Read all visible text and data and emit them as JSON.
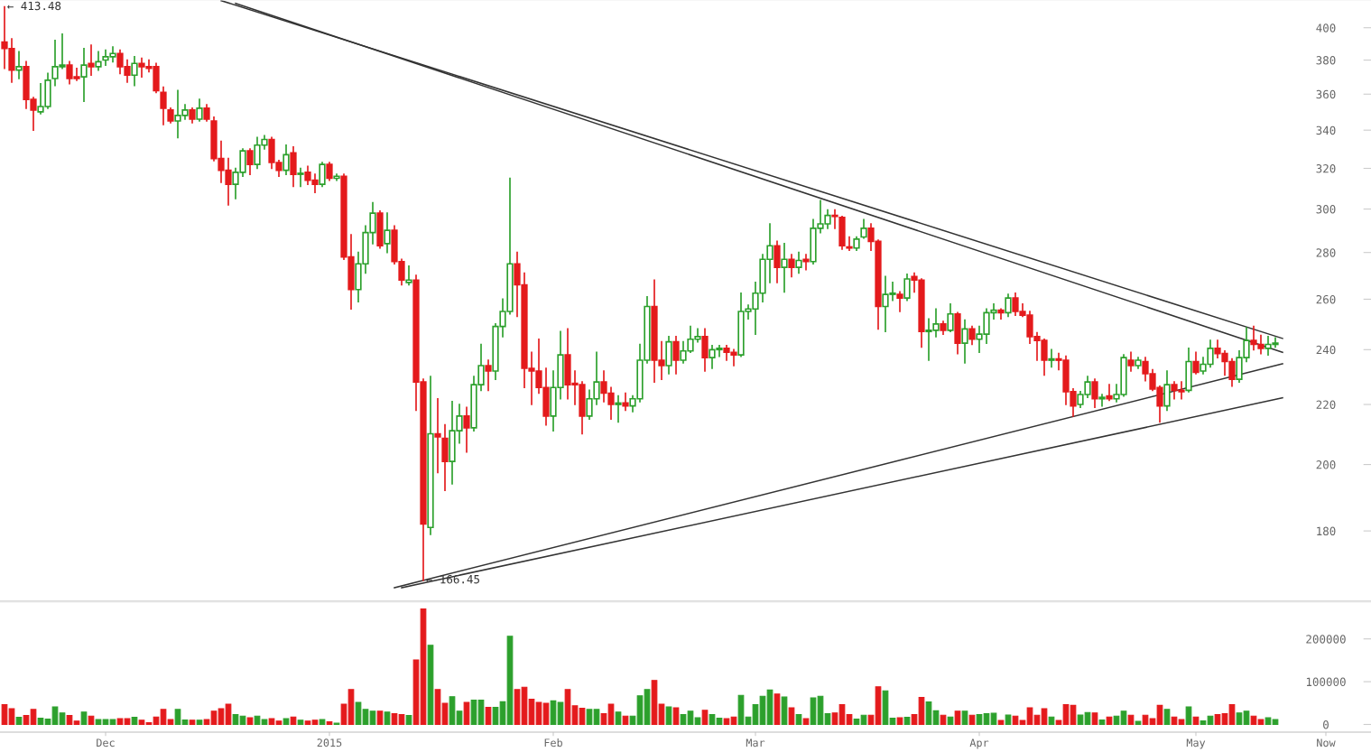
{
  "chart_data": [
    {
      "type": "candlestick",
      "log": true,
      "tick_labels": "y",
      "xlim": [
        "2014-11-16T09:00",
        "2015-05-25T06:00"
      ],
      "ylim": [
        161,
        418
      ],
      "yticks": [
        180,
        200,
        220,
        240,
        260,
        280,
        300,
        320,
        340,
        360,
        380,
        400
      ],
      "annotations": [
        {
          "text": "← 413.48",
          "x": "2014-11-17",
          "y": 413.48
        },
        {
          "text": "← 166.45",
          "x": "2015-01-14",
          "y": 166.45
        }
      ],
      "series": [
        {
          "type": "line",
          "color": "#333333",
          "x": [
            "2014-12-17",
            "2015-05-13"
          ],
          "values": [
            417.6,
            244.3
          ]
        },
        {
          "type": "line",
          "color": "#333333",
          "x": [
            "2014-12-19",
            "2015-05-13"
          ],
          "values": [
            415.8,
            239
          ]
        },
        {
          "type": "line",
          "color": "#333333",
          "x": [
            "2015-01-10",
            "2015-05-13"
          ],
          "values": [
            164.5,
            234.7
          ]
        },
        {
          "type": "line",
          "color": "#333333",
          "x": [
            "2015-01-11",
            "2015-05-13"
          ],
          "values": [
            164.5,
            222.3
          ]
        }
      ],
      "x": [
        "2014-11-17",
        "2014-11-18",
        "2014-11-19",
        "2014-11-20",
        "2014-11-21",
        "2014-11-22",
        "2014-11-23",
        "2014-11-24",
        "2014-11-25",
        "2014-11-26",
        "2014-11-27",
        "2014-11-28",
        "2014-11-29",
        "2014-11-30",
        "2014-12-01",
        "2014-12-02",
        "2014-12-03",
        "2014-12-04",
        "2014-12-05",
        "2014-12-06",
        "2014-12-07",
        "2014-12-08",
        "2014-12-09",
        "2014-12-10",
        "2014-12-11",
        "2014-12-12",
        "2014-12-13",
        "2014-12-14",
        "2014-12-15",
        "2014-12-16",
        "2014-12-17",
        "2014-12-18",
        "2014-12-19",
        "2014-12-20",
        "2014-12-21",
        "2014-12-22",
        "2014-12-23",
        "2014-12-24",
        "2014-12-25",
        "2014-12-26",
        "2014-12-27",
        "2014-12-28",
        "2014-12-29",
        "2014-12-30",
        "2014-12-31",
        "2015-01-01",
        "2015-01-02",
        "2015-01-03",
        "2015-01-04",
        "2015-01-05",
        "2015-01-06",
        "2015-01-07",
        "2015-01-08",
        "2015-01-09",
        "2015-01-10",
        "2015-01-11",
        "2015-01-12",
        "2015-01-13",
        "2015-01-14",
        "2015-01-15",
        "2015-01-16",
        "2015-01-17",
        "2015-01-18",
        "2015-01-19",
        "2015-01-20",
        "2015-01-21",
        "2015-01-22",
        "2015-01-23",
        "2015-01-24",
        "2015-01-25",
        "2015-01-26",
        "2015-01-27",
        "2015-01-28",
        "2015-01-29",
        "2015-01-30",
        "2015-01-31",
        "2015-02-01",
        "2015-02-02",
        "2015-02-03",
        "2015-02-04",
        "2015-02-05",
        "2015-02-06",
        "2015-02-07",
        "2015-02-08",
        "2015-02-09",
        "2015-02-10",
        "2015-02-11",
        "2015-02-12",
        "2015-02-13",
        "2015-02-14",
        "2015-02-15",
        "2015-02-16",
        "2015-02-17",
        "2015-02-18",
        "2015-02-19",
        "2015-02-20",
        "2015-02-21",
        "2015-02-22",
        "2015-02-23",
        "2015-02-24",
        "2015-02-25",
        "2015-02-26",
        "2015-02-27",
        "2015-02-28",
        "2015-03-01",
        "2015-03-02",
        "2015-03-03",
        "2015-03-04",
        "2015-03-05",
        "2015-03-06",
        "2015-03-07",
        "2015-03-08",
        "2015-03-09",
        "2015-03-10",
        "2015-03-11",
        "2015-03-12",
        "2015-03-13",
        "2015-03-14",
        "2015-03-15",
        "2015-03-16",
        "2015-03-17",
        "2015-03-18",
        "2015-03-19",
        "2015-03-20",
        "2015-03-21",
        "2015-03-22",
        "2015-03-23",
        "2015-03-24",
        "2015-03-25",
        "2015-03-26",
        "2015-03-27",
        "2015-03-28",
        "2015-03-29",
        "2015-03-30",
        "2015-03-31",
        "2015-04-01",
        "2015-04-02",
        "2015-04-03",
        "2015-04-04",
        "2015-04-05",
        "2015-04-06",
        "2015-04-07",
        "2015-04-08",
        "2015-04-09",
        "2015-04-10",
        "2015-04-11",
        "2015-04-12",
        "2015-04-13",
        "2015-04-14",
        "2015-04-15",
        "2015-04-16",
        "2015-04-17",
        "2015-04-18",
        "2015-04-19",
        "2015-04-20",
        "2015-04-21",
        "2015-04-22",
        "2015-04-23",
        "2015-04-24",
        "2015-04-25",
        "2015-04-26",
        "2015-04-27",
        "2015-04-28",
        "2015-04-29",
        "2015-04-30",
        "2015-05-01",
        "2015-05-02",
        "2015-05-03",
        "2015-05-04",
        "2015-05-05",
        "2015-05-06",
        "2015-05-07",
        "2015-05-08",
        "2015-05-09",
        "2015-05-10",
        "2015-05-11",
        "2015-05-12"
      ],
      "ohlc": [
        [
          391,
          413.48,
          375,
          387
        ],
        [
          387,
          393,
          367,
          374
        ],
        [
          374,
          385,
          369,
          376
        ],
        [
          376,
          379,
          352,
          357
        ],
        [
          357,
          358,
          340,
          351
        ],
        [
          350,
          366,
          349,
          353
        ],
        [
          353,
          372,
          352,
          368
        ],
        [
          369,
          392,
          365,
          376
        ],
        [
          376,
          396,
          375,
          377
        ],
        [
          377,
          379,
          366,
          369
        ],
        [
          370,
          375,
          368,
          369
        ],
        [
          370,
          387,
          356,
          377
        ],
        [
          378,
          389,
          371,
          376
        ],
        [
          376,
          385,
          374,
          379
        ],
        [
          380,
          386,
          377,
          382
        ],
        [
          382,
          388,
          379,
          384
        ],
        [
          384,
          386,
          372,
          376
        ],
        [
          376,
          380,
          367,
          371
        ],
        [
          371,
          382,
          365,
          378
        ],
        [
          378,
          381,
          370,
          376
        ],
        [
          376,
          380,
          373,
          375
        ],
        [
          376,
          378,
          361,
          362
        ],
        [
          361,
          364,
          343,
          352
        ],
        [
          351,
          352,
          344,
          345
        ],
        [
          345,
          362,
          336,
          348
        ],
        [
          348,
          354,
          346,
          351
        ],
        [
          351,
          352,
          344,
          346
        ],
        [
          346,
          357,
          345,
          352
        ],
        [
          352,
          354,
          345,
          346
        ],
        [
          345,
          347,
          324,
          325
        ],
        [
          325,
          334,
          313,
          319
        ],
        [
          319,
          325,
          302,
          312
        ],
        [
          312,
          320,
          305,
          318
        ],
        [
          318,
          330,
          316,
          329
        ],
        [
          329,
          330,
          317,
          322
        ],
        [
          322,
          336,
          320,
          332
        ],
        [
          332,
          337,
          330,
          335
        ],
        [
          335,
          336,
          320,
          323
        ],
        [
          323,
          324,
          316,
          319
        ],
        [
          319,
          332,
          317,
          327
        ],
        [
          328,
          331,
          311,
          317
        ],
        [
          317,
          320,
          311,
          317.5
        ],
        [
          318,
          321,
          312,
          314
        ],
        [
          314,
          317,
          308,
          312
        ],
        [
          312,
          323,
          311,
          322
        ],
        [
          322,
          323,
          314,
          315
        ],
        [
          315,
          317,
          314,
          316
        ],
        [
          316,
          317,
          277,
          278
        ],
        [
          278,
          288,
          256,
          264
        ],
        [
          264,
          280,
          259,
          275
        ],
        [
          275,
          292,
          271,
          289
        ],
        [
          289,
          303,
          284,
          298
        ],
        [
          298,
          299,
          282,
          283
        ],
        [
          284,
          298,
          280,
          290
        ],
        [
          290,
          292,
          275,
          276
        ],
        [
          276,
          277,
          266,
          268
        ],
        [
          267,
          274,
          266,
          268
        ],
        [
          268,
          270,
          218,
          228
        ],
        [
          228,
          229,
          166.45,
          182
        ],
        [
          181,
          230,
          179,
          210
        ],
        [
          210,
          222,
          197.5,
          209
        ],
        [
          208.5,
          213,
          192,
          201
        ],
        [
          201,
          221,
          194,
          211
        ],
        [
          211,
          220,
          207,
          216
        ],
        [
          216,
          219,
          204,
          212
        ],
        [
          212,
          230,
          211,
          227
        ],
        [
          227,
          242,
          225,
          234
        ],
        [
          234,
          236,
          225,
          232
        ],
        [
          232,
          250,
          229,
          249
        ],
        [
          249,
          260,
          245,
          255
        ],
        [
          255,
          315,
          254,
          275
        ],
        [
          275,
          280,
          253,
          266
        ],
        [
          266,
          271,
          226,
          233
        ],
        [
          233,
          239,
          220,
          232
        ],
        [
          232,
          244,
          224,
          226
        ],
        [
          226,
          233,
          213,
          216
        ],
        [
          216,
          232,
          211,
          226
        ],
        [
          226,
          247,
          222,
          238
        ],
        [
          238,
          248,
          222,
          227
        ],
        [
          227.5,
          232,
          220,
          227
        ],
        [
          227,
          228,
          210,
          216
        ],
        [
          216,
          225,
          215,
          222
        ],
        [
          222,
          239,
          220,
          228
        ],
        [
          228,
          232,
          221,
          224
        ],
        [
          224,
          226,
          215,
          220
        ],
        [
          220,
          223,
          214,
          220.5
        ],
        [
          220.5,
          224,
          218,
          219.5
        ],
        [
          219.5,
          223,
          217.5,
          222
        ],
        [
          222,
          242,
          221,
          236
        ],
        [
          236,
          261,
          235,
          257
        ],
        [
          257,
          268,
          228,
          236
        ],
        [
          236,
          243,
          229,
          234
        ],
        [
          234,
          245,
          231,
          243
        ],
        [
          243,
          245,
          231,
          236
        ],
        [
          236,
          243,
          235,
          239.5
        ],
        [
          239.5,
          249,
          239,
          244
        ],
        [
          244,
          248,
          243,
          245
        ],
        [
          245,
          248,
          232,
          237
        ],
        [
          237,
          241.5,
          233,
          240
        ],
        [
          240,
          241.5,
          237.5,
          240.5
        ],
        [
          240.5,
          241.5,
          236,
          239
        ],
        [
          239,
          240,
          234,
          238
        ],
        [
          238,
          262.5,
          237.5,
          255
        ],
        [
          255,
          257.5,
          252,
          256
        ],
        [
          256,
          267,
          246,
          262.5
        ],
        [
          262.5,
          279,
          259,
          277
        ],
        [
          277,
          293,
          267,
          283
        ],
        [
          283,
          285,
          267,
          273.5
        ],
        [
          273.5,
          284,
          263,
          277
        ],
        [
          277,
          279,
          269.5,
          273.5
        ],
        [
          273.5,
          280,
          271,
          276.5
        ],
        [
          277,
          279,
          272.5,
          276
        ],
        [
          276,
          295,
          275,
          291
        ],
        [
          291,
          304,
          289,
          293
        ],
        [
          293,
          299.5,
          291,
          297
        ],
        [
          297,
          299.5,
          291,
          296.5
        ],
        [
          296,
          296.5,
          281.5,
          283
        ],
        [
          282.5,
          287,
          281,
          282
        ],
        [
          282,
          287,
          281,
          286
        ],
        [
          287,
          295,
          286.5,
          291
        ],
        [
          291,
          293,
          281,
          285
        ],
        [
          285,
          285.5,
          248,
          257
        ],
        [
          257,
          269.5,
          247,
          262
        ],
        [
          262,
          267,
          259.5,
          262.5
        ],
        [
          262,
          263,
          255,
          260.5
        ],
        [
          260.5,
          270.5,
          259.5,
          268.5
        ],
        [
          269.5,
          271,
          263,
          268
        ],
        [
          268,
          268.5,
          241,
          247
        ],
        [
          247,
          252,
          236,
          247.5
        ],
        [
          247.5,
          256,
          245,
          250
        ],
        [
          250,
          251,
          246,
          247.5
        ],
        [
          247.5,
          258,
          247,
          254
        ],
        [
          254,
          254.5,
          238.5,
          242.5
        ],
        [
          242.5,
          251.5,
          235,
          248
        ],
        [
          248,
          249,
          242,
          244
        ],
        [
          244,
          249,
          239,
          246
        ],
        [
          246,
          256,
          242.5,
          254.5
        ],
        [
          254.5,
          258,
          252,
          255.5
        ],
        [
          255.5,
          256,
          252,
          254.5
        ],
        [
          254.5,
          262,
          253,
          260.5
        ],
        [
          260.5,
          262.5,
          253.5,
          255
        ],
        [
          255,
          258,
          253,
          253.5
        ],
        [
          253.5,
          255,
          242.5,
          245
        ],
        [
          245,
          246.5,
          236,
          243.5
        ],
        [
          243.5,
          244,
          230.5,
          236
        ],
        [
          236,
          240,
          233.5,
          236.5
        ],
        [
          236.5,
          238.5,
          232.5,
          236
        ],
        [
          236,
          237.5,
          220,
          224.5
        ],
        [
          224.5,
          225.5,
          216,
          219.5
        ],
        [
          220,
          224.5,
          219,
          223.5
        ],
        [
          223.5,
          230,
          222.5,
          228
        ],
        [
          228,
          229,
          219,
          222
        ],
        [
          222,
          223.5,
          219.5,
          222.5
        ],
        [
          223,
          227,
          221.5,
          222
        ],
        [
          222,
          227,
          221,
          223.5
        ],
        [
          223.5,
          238,
          223,
          237
        ],
        [
          236,
          239,
          232,
          234
        ],
        [
          234,
          237,
          233,
          236
        ],
        [
          235.5,
          237,
          228.5,
          231
        ],
        [
          231,
          232.5,
          225,
          225.5
        ],
        [
          226,
          226.5,
          214,
          219.5
        ],
        [
          219.5,
          232,
          218,
          227
        ],
        [
          227,
          228,
          222,
          225
        ],
        [
          225,
          228,
          222,
          224.5
        ],
        [
          225,
          240.5,
          224.5,
          235.5
        ],
        [
          235.5,
          239,
          231,
          231.5
        ],
        [
          232,
          237,
          231,
          234.5
        ],
        [
          234.5,
          243.5,
          233.5,
          240.5
        ],
        [
          240.5,
          243.5,
          237,
          238.5
        ],
        [
          238.5,
          239.5,
          230.5,
          235.5
        ],
        [
          235.5,
          236.5,
          226.5,
          229
        ],
        [
          229,
          239.5,
          228,
          237
        ],
        [
          237,
          248.5,
          235.5,
          243.5
        ],
        [
          243.5,
          249,
          240,
          242
        ],
        [
          242,
          245.5,
          238.5,
          240.5
        ],
        [
          240.5,
          245,
          238,
          242
        ],
        [
          242,
          244.5,
          241,
          242.5
        ]
      ],
      "colors": [
        "#e41a1c",
        "#e41a1c",
        "#2ca02c",
        "#e41a1c",
        "#e41a1c",
        "#2ca02c",
        "#2ca02c",
        "#2ca02c",
        "#2ca02c",
        "#e41a1c",
        "#e41a1c",
        "#2ca02c",
        "#e41a1c",
        "#2ca02c",
        "#2ca02c",
        "#2ca02c",
        "#e41a1c",
        "#e41a1c",
        "#2ca02c",
        "#e41a1c",
        "#e41a1c",
        "#e41a1c",
        "#e41a1c",
        "#e41a1c",
        "#2ca02c",
        "#2ca02c",
        "#e41a1c",
        "#2ca02c",
        "#e41a1c",
        "#e41a1c",
        "#e41a1c",
        "#e41a1c",
        "#2ca02c",
        "#2ca02c",
        "#e41a1c",
        "#2ca02c",
        "#2ca02c",
        "#e41a1c",
        "#e41a1c",
        "#2ca02c",
        "#e41a1c",
        "#2ca02c",
        "#e41a1c",
        "#e41a1c",
        "#2ca02c",
        "#e41a1c",
        "#2ca02c",
        "#e41a1c",
        "#e41a1c",
        "#2ca02c",
        "#2ca02c",
        "#2ca02c",
        "#e41a1c",
        "#2ca02c",
        "#e41a1c",
        "#e41a1c",
        "#2ca02c",
        "#e41a1c",
        "#e41a1c",
        "#2ca02c",
        "#e41a1c",
        "#e41a1c",
        "#2ca02c",
        "#2ca02c",
        "#e41a1c",
        "#2ca02c",
        "#2ca02c",
        "#e41a1c",
        "#2ca02c",
        "#2ca02c",
        "#2ca02c",
        "#e41a1c",
        "#e41a1c",
        "#e41a1c",
        "#e41a1c",
        "#e41a1c",
        "#2ca02c",
        "#2ca02c",
        "#e41a1c",
        "#e41a1c",
        "#e41a1c",
        "#2ca02c",
        "#2ca02c",
        "#e41a1c",
        "#e41a1c",
        "#2ca02c",
        "#e41a1c",
        "#2ca02c",
        "#2ca02c",
        "#2ca02c",
        "#e41a1c",
        "#e41a1c",
        "#2ca02c",
        "#e41a1c",
        "#2ca02c",
        "#2ca02c",
        "#2ca02c",
        "#e41a1c",
        "#2ca02c",
        "#2ca02c",
        "#e41a1c",
        "#e41a1c",
        "#2ca02c",
        "#2ca02c",
        "#2ca02c",
        "#2ca02c",
        "#2ca02c",
        "#e41a1c",
        "#2ca02c",
        "#e41a1c",
        "#2ca02c",
        "#e41a1c",
        "#2ca02c",
        "#2ca02c",
        "#2ca02c",
        "#e41a1c",
        "#e41a1c",
        "#e41a1c",
        "#2ca02c",
        "#2ca02c",
        "#e41a1c",
        "#e41a1c",
        "#2ca02c",
        "#2ca02c",
        "#e41a1c",
        "#2ca02c",
        "#e41a1c",
        "#e41a1c",
        "#2ca02c",
        "#2ca02c",
        "#e41a1c",
        "#2ca02c",
        "#e41a1c",
        "#2ca02c",
        "#e41a1c",
        "#2ca02c",
        "#2ca02c",
        "#2ca02c",
        "#e41a1c",
        "#2ca02c",
        "#e41a1c",
        "#e41a1c",
        "#e41a1c",
        "#e41a1c",
        "#e41a1c",
        "#2ca02c",
        "#e41a1c",
        "#e41a1c",
        "#e41a1c",
        "#2ca02c",
        "#2ca02c",
        "#e41a1c",
        "#2ca02c",
        "#e41a1c",
        "#2ca02c",
        "#2ca02c",
        "#e41a1c",
        "#2ca02c",
        "#e41a1c",
        "#e41a1c",
        "#e41a1c",
        "#2ca02c",
        "#e41a1c",
        "#e41a1c",
        "#2ca02c",
        "#e41a1c",
        "#2ca02c",
        "#2ca02c",
        "#e41a1c",
        "#e41a1c",
        "#e41a1c",
        "#2ca02c",
        "#2ca02c",
        "#e41a1c",
        "#e41a1c",
        "#2ca02c",
        "#2ca02c"
      ]
    },
    {
      "type": "bar",
      "xlim": [
        "2014-11-16T09:00",
        "2015-05-25T06:00"
      ],
      "xticks": [
        {
          "value": "2014-12-01",
          "label": "Dec"
        },
        {
          "value": "2015-01-01",
          "label": "2015"
        },
        {
          "value": "2015-02-01",
          "label": "Feb"
        },
        {
          "value": "2015-03-01",
          "label": "Mar"
        },
        {
          "value": "2015-04-01",
          "label": "Apr"
        },
        {
          "value": "2015-05-01",
          "label": "May"
        },
        {
          "value": "2015-05-19",
          "label": "Now"
        }
      ],
      "ylim": [
        -18000,
        286000
      ],
      "yticks": [
        0,
        100000,
        200000
      ],
      "x": [
        "2014-11-17",
        "2014-11-18",
        "2014-11-19",
        "2014-11-20",
        "2014-11-21",
        "2014-11-22",
        "2014-11-23",
        "2014-11-24",
        "2014-11-25",
        "2014-11-26",
        "2014-11-27",
        "2014-11-28",
        "2014-11-29",
        "2014-11-30",
        "2014-12-01",
        "2014-12-02",
        "2014-12-03",
        "2014-12-04",
        "2014-12-05",
        "2014-12-06",
        "2014-12-07",
        "2014-12-08",
        "2014-12-09",
        "2014-12-10",
        "2014-12-11",
        "2014-12-12",
        "2014-12-13",
        "2014-12-14",
        "2014-12-15",
        "2014-12-16",
        "2014-12-17",
        "2014-12-18",
        "2014-12-19",
        "2014-12-20",
        "2014-12-21",
        "2014-12-22",
        "2014-12-23",
        "2014-12-24",
        "2014-12-25",
        "2014-12-26",
        "2014-12-27",
        "2014-12-28",
        "2014-12-29",
        "2014-12-30",
        "2014-12-31",
        "2015-01-01",
        "2015-01-02",
        "2015-01-03",
        "2015-01-04",
        "2015-01-05",
        "2015-01-06",
        "2015-01-07",
        "2015-01-08",
        "2015-01-09",
        "2015-01-10",
        "2015-01-11",
        "2015-01-12",
        "2015-01-13",
        "2015-01-14",
        "2015-01-15",
        "2015-01-16",
        "2015-01-17",
        "2015-01-18",
        "2015-01-19",
        "2015-01-20",
        "2015-01-21",
        "2015-01-22",
        "2015-01-23",
        "2015-01-24",
        "2015-01-25",
        "2015-01-26",
        "2015-01-27",
        "2015-01-28",
        "2015-01-29",
        "2015-01-30",
        "2015-01-31",
        "2015-02-01",
        "2015-02-02",
        "2015-02-03",
        "2015-02-04",
        "2015-02-05",
        "2015-02-06",
        "2015-02-07",
        "2015-02-08",
        "2015-02-09",
        "2015-02-10",
        "2015-02-11",
        "2015-02-12",
        "2015-02-13",
        "2015-02-14",
        "2015-02-15",
        "2015-02-16",
        "2015-02-17",
        "2015-02-18",
        "2015-02-19",
        "2015-02-20",
        "2015-02-21",
        "2015-02-22",
        "2015-02-23",
        "2015-02-24",
        "2015-02-25",
        "2015-02-26",
        "2015-02-27",
        "2015-02-28",
        "2015-03-01",
        "2015-03-02",
        "2015-03-03",
        "2015-03-04",
        "2015-03-05",
        "2015-03-06",
        "2015-03-07",
        "2015-03-08",
        "2015-03-09",
        "2015-03-10",
        "2015-03-11",
        "2015-03-12",
        "2015-03-13",
        "2015-03-14",
        "2015-03-15",
        "2015-03-16",
        "2015-03-17",
        "2015-03-18",
        "2015-03-19",
        "2015-03-20",
        "2015-03-21",
        "2015-03-22",
        "2015-03-23",
        "2015-03-24",
        "2015-03-25",
        "2015-03-26",
        "2015-03-27",
        "2015-03-28",
        "2015-03-29",
        "2015-03-30",
        "2015-03-31",
        "2015-04-01",
        "2015-04-02",
        "2015-04-03",
        "2015-04-04",
        "2015-04-05",
        "2015-04-06",
        "2015-04-07",
        "2015-04-08",
        "2015-04-09",
        "2015-04-10",
        "2015-04-11",
        "2015-04-12",
        "2015-04-13",
        "2015-04-14",
        "2015-04-15",
        "2015-04-16",
        "2015-04-17",
        "2015-04-18",
        "2015-04-19",
        "2015-04-20",
        "2015-04-21",
        "2015-04-22",
        "2015-04-23",
        "2015-04-24",
        "2015-04-25",
        "2015-04-26",
        "2015-04-27",
        "2015-04-28",
        "2015-04-29",
        "2015-04-30",
        "2015-05-01",
        "2015-05-02",
        "2015-05-03",
        "2015-05-04",
        "2015-05-05",
        "2015-05-06",
        "2015-05-07",
        "2015-05-08",
        "2015-05-09",
        "2015-05-10",
        "2015-05-11",
        "2015-05-12"
      ],
      "values": [
        46500,
        37000,
        16500,
        21000,
        35000,
        14500,
        12500,
        41000,
        27000,
        21000,
        8000,
        29000,
        19500,
        11500,
        11500,
        11500,
        13500,
        13500,
        16500,
        10000,
        4000,
        17500,
        35000,
        11500,
        35000,
        10500,
        10000,
        10000,
        11500,
        31000,
        37000,
        47500,
        23000,
        19500,
        15500,
        19500,
        11500,
        13500,
        8000,
        13500,
        17500,
        10000,
        8000,
        10000,
        11500,
        6000,
        3000,
        47500,
        81500,
        51500,
        35000,
        31000,
        31000,
        29000,
        25000,
        23000,
        21000,
        151000,
        270000,
        185000,
        81500,
        49500,
        65000,
        31000,
        51500,
        57000,
        57000,
        40000,
        40000,
        53000,
        206000,
        81500,
        87000,
        59000,
        51500,
        49500,
        55000,
        51500,
        81500,
        43500,
        38000,
        35000,
        35000,
        25000,
        47500,
        29000,
        19500,
        19500,
        67000,
        81500,
        103000,
        47500,
        41000,
        39000,
        23000,
        31000,
        15500,
        33000,
        23000,
        14500,
        13500,
        17500,
        68000,
        17500,
        46500,
        66000,
        80500,
        71000,
        64000,
        39000,
        23000,
        13500,
        62000,
        66000,
        25000,
        27000,
        46500,
        23000,
        12500,
        21500,
        21500,
        88000,
        78500,
        14500,
        15500,
        16500,
        23000,
        63000,
        52500,
        32000,
        21500,
        17500,
        31000,
        31000,
        21500,
        23000,
        25000,
        26000,
        9500,
        22000,
        19500,
        9500,
        39000,
        21500,
        37000,
        17500,
        9500,
        46500,
        44500,
        22000,
        28000,
        27000,
        10500,
        17500,
        19500,
        31000,
        21500,
        7000,
        21500,
        13500,
        44500,
        35000,
        17500,
        11500,
        41000,
        17500,
        8500,
        19500,
        23000,
        25000,
        46500,
        27000,
        31000,
        19500,
        11500,
        15500,
        11500
      ],
      "colors": [
        "#e41a1c",
        "#e41a1c",
        "#2ca02c",
        "#e41a1c",
        "#e41a1c",
        "#2ca02c",
        "#2ca02c",
        "#2ca02c",
        "#2ca02c",
        "#e41a1c",
        "#e41a1c",
        "#2ca02c",
        "#e41a1c",
        "#2ca02c",
        "#2ca02c",
        "#2ca02c",
        "#e41a1c",
        "#e41a1c",
        "#2ca02c",
        "#e41a1c",
        "#e41a1c",
        "#e41a1c",
        "#e41a1c",
        "#e41a1c",
        "#2ca02c",
        "#2ca02c",
        "#e41a1c",
        "#2ca02c",
        "#e41a1c",
        "#e41a1c",
        "#e41a1c",
        "#e41a1c",
        "#2ca02c",
        "#2ca02c",
        "#e41a1c",
        "#2ca02c",
        "#2ca02c",
        "#e41a1c",
        "#e41a1c",
        "#2ca02c",
        "#e41a1c",
        "#2ca02c",
        "#e41a1c",
        "#e41a1c",
        "#2ca02c",
        "#e41a1c",
        "#2ca02c",
        "#e41a1c",
        "#e41a1c",
        "#2ca02c",
        "#2ca02c",
        "#2ca02c",
        "#e41a1c",
        "#2ca02c",
        "#e41a1c",
        "#e41a1c",
        "#2ca02c",
        "#e41a1c",
        "#e41a1c",
        "#2ca02c",
        "#e41a1c",
        "#e41a1c",
        "#2ca02c",
        "#2ca02c",
        "#e41a1c",
        "#2ca02c",
        "#2ca02c",
        "#e41a1c",
        "#2ca02c",
        "#2ca02c",
        "#2ca02c",
        "#e41a1c",
        "#e41a1c",
        "#e41a1c",
        "#e41a1c",
        "#e41a1c",
        "#2ca02c",
        "#2ca02c",
        "#e41a1c",
        "#e41a1c",
        "#e41a1c",
        "#2ca02c",
        "#2ca02c",
        "#e41a1c",
        "#e41a1c",
        "#2ca02c",
        "#e41a1c",
        "#2ca02c",
        "#2ca02c",
        "#2ca02c",
        "#e41a1c",
        "#e41a1c",
        "#2ca02c",
        "#e41a1c",
        "#2ca02c",
        "#2ca02c",
        "#2ca02c",
        "#e41a1c",
        "#2ca02c",
        "#2ca02c",
        "#e41a1c",
        "#e41a1c",
        "#2ca02c",
        "#2ca02c",
        "#2ca02c",
        "#2ca02c",
        "#2ca02c",
        "#e41a1c",
        "#2ca02c",
        "#e41a1c",
        "#2ca02c",
        "#e41a1c",
        "#2ca02c",
        "#2ca02c",
        "#2ca02c",
        "#e41a1c",
        "#e41a1c",
        "#e41a1c",
        "#2ca02c",
        "#2ca02c",
        "#e41a1c",
        "#e41a1c",
        "#2ca02c",
        "#2ca02c",
        "#e41a1c",
        "#2ca02c",
        "#e41a1c",
        "#e41a1c",
        "#2ca02c",
        "#2ca02c",
        "#e41a1c",
        "#2ca02c",
        "#e41a1c",
        "#2ca02c",
        "#e41a1c",
        "#2ca02c",
        "#2ca02c",
        "#2ca02c",
        "#e41a1c",
        "#2ca02c",
        "#e41a1c",
        "#e41a1c",
        "#e41a1c",
        "#e41a1c",
        "#e41a1c",
        "#2ca02c",
        "#e41a1c",
        "#e41a1c",
        "#e41a1c",
        "#2ca02c",
        "#2ca02c",
        "#e41a1c",
        "#2ca02c",
        "#e41a1c",
        "#2ca02c",
        "#2ca02c",
        "#e41a1c",
        "#2ca02c",
        "#e41a1c",
        "#e41a1c",
        "#e41a1c",
        "#2ca02c",
        "#e41a1c",
        "#e41a1c",
        "#2ca02c",
        "#e41a1c",
        "#2ca02c",
        "#2ca02c",
        "#e41a1c",
        "#e41a1c",
        "#e41a1c",
        "#2ca02c",
        "#2ca02c",
        "#e41a1c",
        "#e41a1c",
        "#2ca02c",
        "#2ca02c"
      ]
    }
  ]
}
